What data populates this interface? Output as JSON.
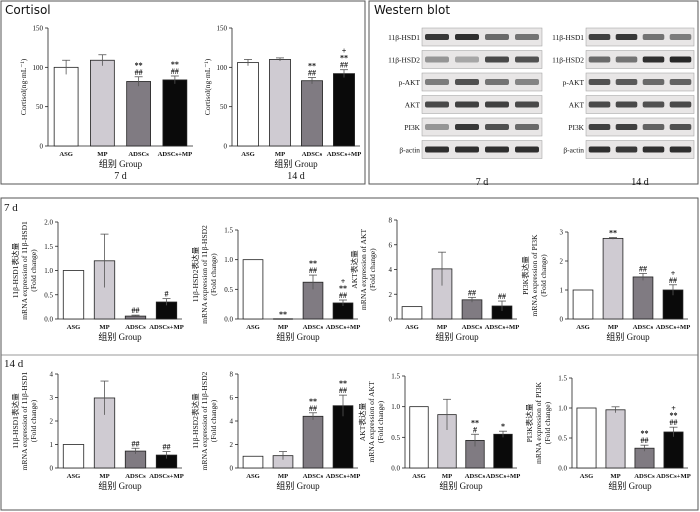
{
  "panel_labels": {
    "cortisol": "Cortisol",
    "western": "Western blot",
    "d7": "7 d",
    "d14": "14 d"
  },
  "categories": [
    "ASG",
    "MP",
    "ADSCs",
    "ADSCs+MP"
  ],
  "group_label": "组别  Group",
  "day7": "7 d",
  "day14": "14 d",
  "colors": {
    "ASG": "#ffffff",
    "MP": "#cfcbd2",
    "ADSCs": "#807b82",
    "ADSCs+MP": "#0a0a0a"
  },
  "blot_labels_7d": [
    "11β-HSD1",
    "11β-HSD2",
    "p-AKT",
    "AKT",
    "PI3K",
    "β-actin"
  ],
  "blot_labels_14d": [
    "11β-HSD1",
    "11β-HSD2",
    "p-AKT",
    "AKT",
    "PI3K",
    "β-actin"
  ],
  "chart_data": [
    {
      "id": "cort7",
      "type": "bar",
      "title": "7 d",
      "ylabel": "Cortisol(ng·mL⁻¹)",
      "xlabel": "组别  Group",
      "ylim": [
        0,
        150
      ],
      "yticks": [
        0,
        50,
        100,
        150
      ],
      "categories": [
        "ASG",
        "MP",
        "ADSCs",
        "ADSCs+MP"
      ],
      "values": [
        100,
        109,
        82,
        84
      ],
      "errors": [
        9,
        7,
        6,
        5
      ],
      "annotations": [
        "",
        "",
        "**\n##",
        "**\n##"
      ]
    },
    {
      "id": "cort14",
      "type": "bar",
      "title": "14 d",
      "ylabel": "Cortisol(ng·mL⁻¹)",
      "xlabel": "组别  Group",
      "ylim": [
        0,
        150
      ],
      "yticks": [
        0,
        50,
        100,
        150
      ],
      "categories": [
        "ASG",
        "MP",
        "ADSCs",
        "ADSCs+MP"
      ],
      "values": [
        106,
        110,
        83,
        92
      ],
      "errors": [
        4,
        2,
        4,
        5
      ],
      "annotations": [
        "",
        "",
        "**\n##",
        "+\n**\n##"
      ]
    },
    {
      "id": "r7_hsd1",
      "type": "bar",
      "ylabel": "11β-HSD1表达量\nmRNA expression of 11β-HSD1\n(Fold change)",
      "xlabel": "组别  Group",
      "ylim": [
        0,
        2.0
      ],
      "yticks": [
        0.0,
        0.5,
        1.0,
        1.5,
        2.0
      ],
      "categories": [
        "ASG",
        "MP",
        "ADSCs",
        "ADSCs+MP"
      ],
      "values": [
        1.0,
        1.2,
        0.06,
        0.35
      ],
      "errors": [
        0,
        0.55,
        0.02,
        0.07
      ],
      "annotations": [
        "",
        "",
        "##",
        "#"
      ]
    },
    {
      "id": "r7_hsd2",
      "type": "bar",
      "ylabel": "11β-HSD2表达量\nmRNA expression of 11β-HSD2\n(Fold change)",
      "xlabel": "组别  Group",
      "ylim": [
        0,
        1.5
      ],
      "yticks": [
        0.0,
        0.5,
        1.0,
        1.5
      ],
      "categories": [
        "ASG",
        "MP",
        "ADSCs",
        "ADSCs+MP"
      ],
      "values": [
        1.0,
        0.0,
        0.62,
        0.27
      ],
      "errors": [
        0,
        0.0,
        0.12,
        0.05
      ],
      "annotations": [
        "",
        "**",
        "**\n##",
        "+\n**\n##"
      ]
    },
    {
      "id": "r7_akt",
      "type": "bar",
      "ylabel": "AKT表达量\nmRNA expression of AKT\n(Fold change)",
      "xlabel": "组别  Group",
      "ylim": [
        0,
        8
      ],
      "yticks": [
        0,
        2,
        4,
        6,
        8
      ],
      "categories": [
        "ASG",
        "MP",
        "ADSCs",
        "ADSCs+MP"
      ],
      "values": [
        1.0,
        4.05,
        1.55,
        1.05
      ],
      "errors": [
        0,
        1.35,
        0.2,
        0.4
      ],
      "annotations": [
        "",
        "",
        "##",
        "##"
      ]
    },
    {
      "id": "r7_pi3k",
      "type": "bar",
      "ylabel": "PI3K表达量\nmRNA expression of PI3K\n(Fold change)",
      "xlabel": "组别  Group",
      "ylim": [
        0,
        3
      ],
      "yticks": [
        0,
        1,
        2,
        3
      ],
      "categories": [
        "ASG",
        "MP",
        "ADSCs",
        "ADSCs+MP"
      ],
      "values": [
        1.0,
        2.78,
        1.45,
        1.0
      ],
      "errors": [
        0,
        0.03,
        0.12,
        0.18
      ],
      "annotations": [
        "",
        "**",
        "##",
        "+\n##"
      ]
    },
    {
      "id": "r14_hsd1",
      "type": "bar",
      "ylabel": "11β-HSD1表达量\nmRNA expression of 11β-HSD1\n(Fold change)",
      "xlabel": "组别  Group",
      "ylim": [
        0,
        4
      ],
      "yticks": [
        0,
        1,
        2,
        3,
        4
      ],
      "categories": [
        "ASG",
        "MP",
        "ADSCs",
        "ADSCs+MP"
      ],
      "values": [
        1.0,
        2.98,
        0.72,
        0.55
      ],
      "errors": [
        0,
        0.72,
        0.12,
        0.15
      ],
      "annotations": [
        "",
        "",
        "##",
        "##"
      ]
    },
    {
      "id": "r14_hsd2",
      "type": "bar",
      "ylabel": "11β-HSD2表达量\nmRNA expression of 11β-HSD2\n(Fold change)",
      "xlabel": "组别  Group",
      "ylim": [
        0,
        8
      ],
      "yticks": [
        0,
        2,
        4,
        6,
        8
      ],
      "categories": [
        "ASG",
        "MP",
        "ADSCs",
        "ADSCs+MP"
      ],
      "values": [
        1.0,
        1.05,
        4.4,
        5.3
      ],
      "errors": [
        0,
        0.35,
        0.3,
        0.9
      ],
      "annotations": [
        "",
        "",
        "**\n##",
        "**\n##"
      ]
    },
    {
      "id": "r14_akt",
      "type": "bar",
      "ylabel": "AKT表达量\nmRNA expression of AKT\n(Fold change)",
      "xlabel": "组别  Group",
      "ylim": [
        0,
        1.5
      ],
      "yticks": [
        0.0,
        0.5,
        1.0,
        1.5
      ],
      "categories": [
        "ASG",
        "MP",
        "ADSCs",
        "ADSCs+MP"
      ],
      "values": [
        1.0,
        0.87,
        0.45,
        0.55
      ],
      "errors": [
        0,
        0.25,
        0.1,
        0.05
      ],
      "annotations": [
        "",
        "",
        "**\n#",
        "*"
      ]
    },
    {
      "id": "r14_pi3k",
      "type": "bar",
      "ylabel": "PI3K表达量\nmRNA expression of PI3K\n(Fold change)",
      "xlabel": "组别  Group",
      "ylim": [
        0,
        1.5
      ],
      "yticks": [
        0.0,
        0.5,
        1.0,
        1.5
      ],
      "categories": [
        "ASG",
        "MP",
        "ADSCs",
        "ADSCs+MP"
      ],
      "values": [
        1.0,
        0.97,
        0.33,
        0.6
      ],
      "errors": [
        0,
        0.05,
        0.05,
        0.08
      ],
      "annotations": [
        "",
        "",
        "**\n##",
        "+\n**\n##"
      ]
    }
  ]
}
